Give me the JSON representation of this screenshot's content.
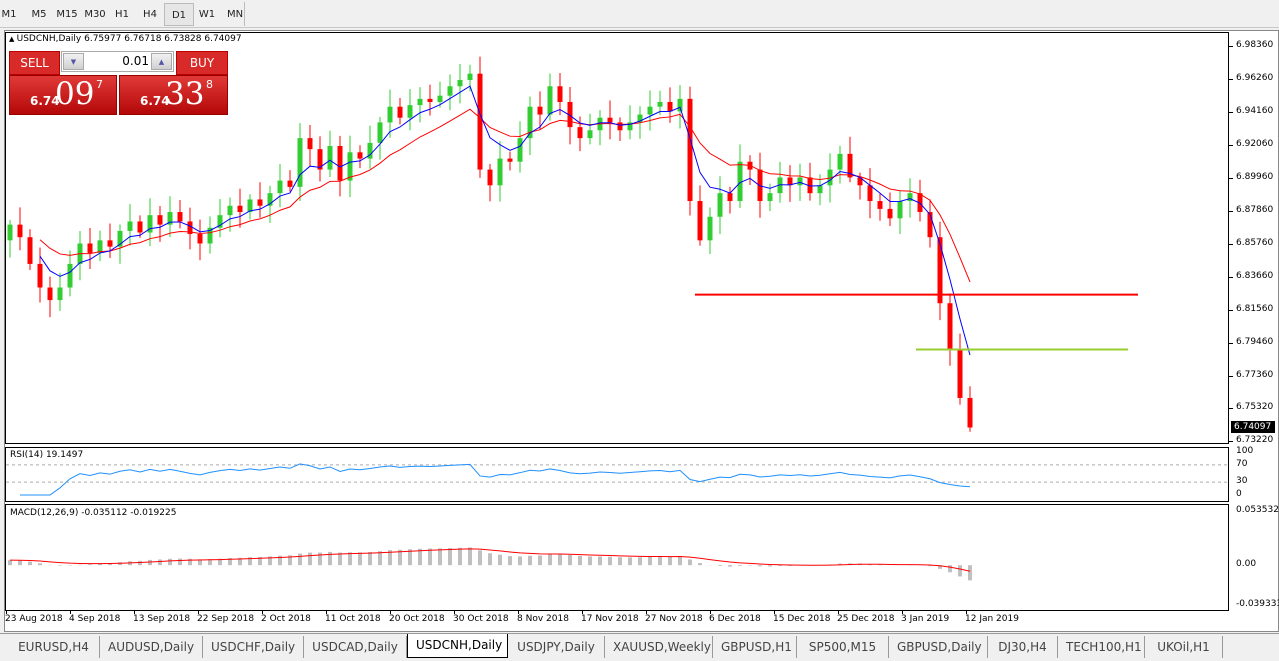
{
  "toolbar": {
    "timeframes": [
      "M1",
      "M5",
      "M15",
      "M30",
      "H1",
      "H4",
      "D1",
      "W1",
      "MN"
    ],
    "active": "D1"
  },
  "chart": {
    "header": "USDCNH,Daily  6.75977 6.76718 6.73828 6.74097",
    "symbol": "USDCNH",
    "period": "Daily",
    "trade_panel": {
      "sell_label": "SELL",
      "buy_label": "BUY",
      "lot": "0.01",
      "sell_price": {
        "prefix": "6.74",
        "big": "09",
        "sup": "7"
      },
      "buy_price": {
        "prefix": "6.74",
        "big": "33",
        "sup": "8"
      }
    },
    "last_price": "6.74097",
    "colors": {
      "bull": "#32cd32",
      "bear": "#ff0000",
      "ma_fast": "#0000ff",
      "ma_slow": "#ff0000",
      "rsi": "#1e90ff",
      "macd_hist": "#c0c0c0",
      "macd_signal": "#ff0000",
      "hline_1": "#ff0000",
      "hline_2": "#9acd32"
    }
  },
  "chart_data": {
    "type": "candlestick",
    "price_axis": [
      "6.98360",
      "6.96260",
      "6.94160",
      "6.92060",
      "6.89960",
      "6.87860",
      "6.85760",
      "6.83660",
      "6.81560",
      "6.79460",
      "6.77360",
      "6.75320",
      "6.73220"
    ],
    "ylim": [
      6.7322,
      6.9836
    ],
    "last_candle": {
      "open": 6.75977,
      "high": 6.76718,
      "low": 6.73828,
      "close": 6.74097
    },
    "close": [
      6.87,
      6.862,
      6.845,
      6.83,
      6.822,
      6.83,
      6.845,
      6.858,
      6.852,
      6.86,
      6.856,
      6.866,
      6.872,
      6.865,
      6.876,
      6.87,
      6.878,
      6.872,
      6.864,
      6.858,
      6.868,
      6.876,
      6.882,
      6.878,
      6.886,
      6.882,
      6.89,
      6.898,
      6.894,
      6.925,
      6.918,
      6.905,
      6.92,
      6.898,
      6.916,
      6.912,
      6.922,
      6.935,
      6.945,
      6.938,
      6.946,
      6.95,
      6.948,
      6.952,
      6.958,
      6.962,
      6.966,
      6.905,
      6.895,
      6.912,
      6.91,
      6.925,
      6.945,
      6.94,
      6.958,
      6.948,
      6.932,
      6.925,
      6.93,
      6.938,
      6.935,
      6.93,
      6.935,
      6.94,
      6.945,
      6.948,
      6.942,
      6.95,
      6.885,
      6.86,
      6.875,
      6.89,
      6.885,
      6.91,
      6.905,
      6.885,
      6.89,
      6.9,
      6.895,
      6.9,
      6.89,
      6.895,
      6.905,
      6.915,
      6.9,
      6.895,
      6.885,
      6.88,
      6.874,
      6.885,
      6.89,
      6.878,
      6.862,
      6.82,
      6.79,
      6.75977,
      6.74097
    ],
    "horizontal_lines": [
      6.8255,
      6.7906
    ],
    "date_labels": [
      "23 Aug 2018",
      "4 Sep 2018",
      "13 Sep 2018",
      "22 Sep 2018",
      "2 Oct 2018",
      "11 Oct 2018",
      "20 Oct 2018",
      "30 Oct 2018",
      "8 Nov 2018",
      "17 Nov 2018",
      "27 Nov 2018",
      "6 Dec 2018",
      "15 Dec 2018",
      "25 Dec 2018",
      "3 Jan 2019",
      "12 Jan 2019"
    ],
    "rsi": {
      "label": "RSI(14) 19.1497",
      "levels": [
        "100",
        "70",
        "30",
        "0"
      ]
    },
    "macd": {
      "label": "MACD(12,26,9) -0.035112 -0.019225",
      "axis": [
        "0.053532",
        "0.00",
        "-0.039333"
      ],
      "range": [
        -0.039333,
        0.053532
      ]
    }
  },
  "tabs": [
    "EURUSD,H4",
    "AUDUSD,Daily",
    "USDCHF,Daily",
    "USDCAD,Daily",
    "USDCNH,Daily",
    "USDJPY,Daily",
    "XAUUSD,Weekly",
    "GBPUSD,H1",
    "SP500,M15",
    "GBPUSD,Daily",
    "DJ30,H4",
    "TECH100,H1",
    "UKOil,H1"
  ],
  "active_tab": "USDCNH,Daily"
}
